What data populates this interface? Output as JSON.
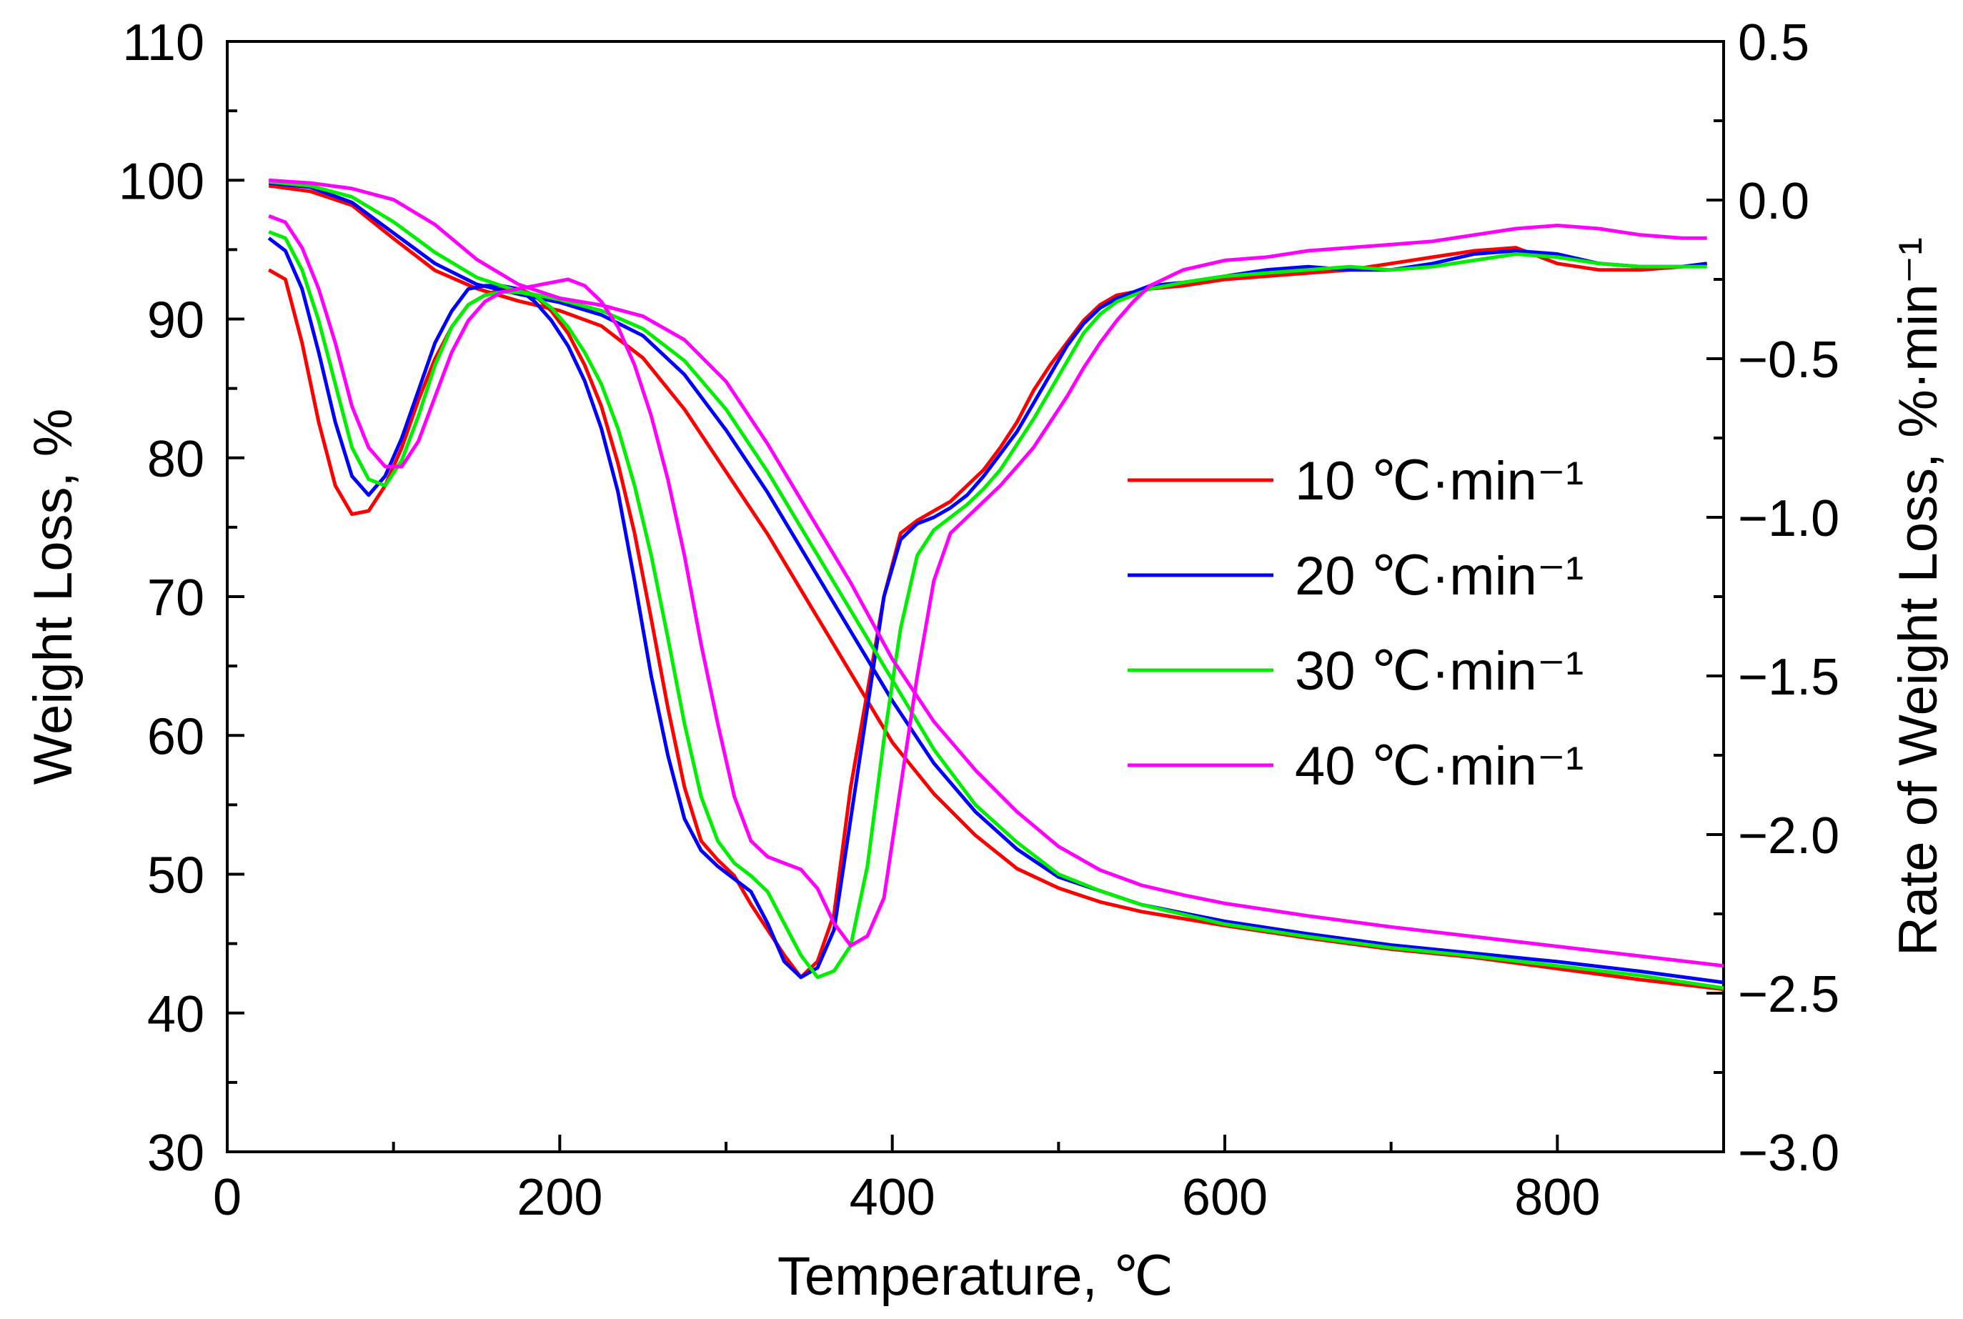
{
  "chart_data": {
    "type": "line",
    "xlabel": "Temperature, ℃",
    "ylabel_left": "Weight Loss, %",
    "ylabel_right": "Rate of Weight Loss, %·min⁻¹",
    "xlim": [
      0,
      900
    ],
    "ylim_left": [
      30,
      110
    ],
    "ylim_right": [
      -3.0,
      0.5
    ],
    "xticks": [
      0,
      200,
      400,
      600,
      800
    ],
    "xtick_labels": [
      "0",
      "200",
      "400",
      "600",
      "800"
    ],
    "yticks_left": [
      30,
      40,
      50,
      60,
      70,
      80,
      90,
      100,
      110
    ],
    "ytick_labels_left": [
      "30",
      "40",
      "50",
      "60",
      "70",
      "80",
      "90",
      "100",
      "110"
    ],
    "yticks_right": [
      -3.0,
      -2.5,
      -2.0,
      -1.5,
      -1.0,
      -0.5,
      0.0,
      0.5
    ],
    "ytick_labels_right": [
      "−3.0",
      "−2.5",
      "−2.0",
      "−1.5",
      "−1.0",
      "−0.5",
      "0.0",
      "0.5"
    ],
    "legend_position": "center-right",
    "series": [
      {
        "name": "10 ℃·min⁻¹",
        "color": "#ff0000",
        "tg_x": [
          25,
          50,
          75,
          100,
          125,
          150,
          175,
          200,
          225,
          250,
          275,
          300,
          325,
          350,
          375,
          400,
          425,
          450,
          475,
          500,
          525,
          550,
          575,
          600,
          650,
          700,
          750,
          800,
          850,
          900
        ],
        "tg_y": [
          99.6,
          99.2,
          98.2,
          95.8,
          93.5,
          92.2,
          91.3,
          90.6,
          89.5,
          87.2,
          83.5,
          79.0,
          74.5,
          69.5,
          64.5,
          59.5,
          55.8,
          52.8,
          50.4,
          49.0,
          48.0,
          47.3,
          46.8,
          46.3,
          45.4,
          44.6,
          44.0,
          43.2,
          42.4,
          41.7
        ],
        "dtg_x": [
          25,
          35,
          45,
          55,
          65,
          75,
          85,
          95,
          105,
          115,
          125,
          135,
          145,
          155,
          165,
          175,
          185,
          195,
          205,
          215,
          225,
          235,
          245,
          255,
          265,
          275,
          285,
          295,
          305,
          315,
          325,
          335,
          345,
          355,
          365,
          375,
          385,
          395,
          405,
          415,
          425,
          435,
          445,
          455,
          465,
          475,
          485,
          495,
          505,
          515,
          525,
          535,
          545,
          555,
          575,
          600,
          625,
          650,
          675,
          700,
          725,
          750,
          775,
          800,
          825,
          850,
          875,
          890
        ],
        "dtg_y": [
          -0.22,
          -0.25,
          -0.45,
          -0.7,
          -0.9,
          -0.99,
          -0.98,
          -0.9,
          -0.78,
          -0.63,
          -0.5,
          -0.4,
          -0.33,
          -0.3,
          -0.28,
          -0.28,
          -0.3,
          -0.35,
          -0.42,
          -0.52,
          -0.65,
          -0.83,
          -1.05,
          -1.32,
          -1.6,
          -1.85,
          -2.02,
          -2.08,
          -2.13,
          -2.22,
          -2.3,
          -2.38,
          -2.45,
          -2.4,
          -2.25,
          -1.85,
          -1.55,
          -1.25,
          -1.05,
          -1.01,
          -0.98,
          -0.95,
          -0.9,
          -0.85,
          -0.78,
          -0.7,
          -0.6,
          -0.52,
          -0.45,
          -0.38,
          -0.33,
          -0.3,
          -0.29,
          -0.28,
          -0.27,
          -0.25,
          -0.24,
          -0.23,
          -0.22,
          -0.2,
          -0.18,
          -0.16,
          -0.15,
          -0.2,
          -0.22,
          -0.22,
          -0.21,
          -0.2
        ]
      },
      {
        "name": "20 ℃·min⁻¹",
        "color": "#0000ff",
        "tg_x": [
          25,
          50,
          75,
          100,
          125,
          150,
          175,
          200,
          225,
          250,
          275,
          300,
          325,
          350,
          375,
          400,
          425,
          450,
          475,
          500,
          525,
          550,
          575,
          600,
          650,
          700,
          750,
          800,
          850,
          900
        ],
        "tg_y": [
          99.8,
          99.5,
          98.4,
          96.2,
          94.0,
          92.5,
          91.8,
          91.2,
          90.3,
          88.8,
          86.0,
          82.0,
          77.5,
          72.5,
          67.5,
          62.5,
          58.0,
          54.5,
          51.8,
          49.8,
          48.8,
          47.8,
          47.2,
          46.6,
          45.7,
          44.9,
          44.3,
          43.7,
          43.0,
          42.2
        ],
        "dtg_x": [
          25,
          35,
          45,
          55,
          65,
          75,
          85,
          95,
          105,
          115,
          125,
          135,
          145,
          155,
          165,
          175,
          185,
          195,
          205,
          215,
          225,
          235,
          245,
          255,
          265,
          275,
          285,
          295,
          305,
          315,
          325,
          335,
          345,
          355,
          365,
          375,
          385,
          395,
          405,
          415,
          425,
          435,
          445,
          455,
          465,
          475,
          485,
          495,
          505,
          515,
          525,
          535,
          545,
          555,
          575,
          600,
          625,
          650,
          675,
          700,
          725,
          750,
          775,
          800,
          825,
          850,
          875,
          890
        ],
        "dtg_y": [
          -0.12,
          -0.16,
          -0.28,
          -0.48,
          -0.7,
          -0.87,
          -0.93,
          -0.87,
          -0.75,
          -0.6,
          -0.45,
          -0.35,
          -0.28,
          -0.27,
          -0.27,
          -0.28,
          -0.32,
          -0.38,
          -0.46,
          -0.57,
          -0.72,
          -0.92,
          -1.2,
          -1.5,
          -1.75,
          -1.95,
          -2.05,
          -2.1,
          -2.14,
          -2.18,
          -2.28,
          -2.4,
          -2.45,
          -2.42,
          -2.3,
          -1.95,
          -1.6,
          -1.25,
          -1.07,
          -1.02,
          -1.0,
          -0.97,
          -0.93,
          -0.87,
          -0.8,
          -0.73,
          -0.64,
          -0.55,
          -0.46,
          -0.39,
          -0.34,
          -0.31,
          -0.29,
          -0.27,
          -0.26,
          -0.24,
          -0.22,
          -0.21,
          -0.22,
          -0.22,
          -0.2,
          -0.17,
          -0.16,
          -0.17,
          -0.2,
          -0.21,
          -0.21,
          -0.2
        ]
      },
      {
        "name": "30 ℃·min⁻¹",
        "color": "#00ee00",
        "tg_x": [
          25,
          50,
          75,
          100,
          125,
          150,
          175,
          200,
          225,
          250,
          275,
          300,
          325,
          350,
          375,
          400,
          425,
          450,
          475,
          500,
          525,
          550,
          575,
          600,
          650,
          700,
          750,
          800,
          850,
          900
        ],
        "tg_y": [
          99.9,
          99.6,
          98.8,
          97.0,
          94.8,
          93.0,
          92.0,
          91.4,
          90.6,
          89.3,
          87.0,
          83.5,
          79.0,
          74.0,
          69.0,
          64.0,
          59.0,
          55.0,
          52.3,
          50.0,
          48.8,
          47.8,
          47.1,
          46.4,
          45.5,
          44.7,
          44.1,
          43.4,
          42.7,
          41.8
        ],
        "dtg_x": [
          25,
          35,
          45,
          55,
          65,
          75,
          85,
          95,
          105,
          115,
          125,
          135,
          145,
          155,
          165,
          175,
          185,
          195,
          205,
          215,
          225,
          235,
          245,
          255,
          265,
          275,
          285,
          295,
          305,
          315,
          325,
          335,
          345,
          355,
          365,
          375,
          385,
          395,
          405,
          415,
          425,
          435,
          445,
          455,
          465,
          475,
          485,
          495,
          505,
          515,
          525,
          535,
          545,
          555,
          575,
          600,
          625,
          650,
          675,
          700,
          725,
          750,
          775,
          800,
          825,
          850,
          875,
          890
        ],
        "dtg_y": [
          -0.1,
          -0.12,
          -0.22,
          -0.38,
          -0.58,
          -0.78,
          -0.88,
          -0.9,
          -0.82,
          -0.68,
          -0.52,
          -0.4,
          -0.33,
          -0.3,
          -0.29,
          -0.29,
          -0.3,
          -0.34,
          -0.4,
          -0.48,
          -0.58,
          -0.72,
          -0.9,
          -1.12,
          -1.38,
          -1.65,
          -1.88,
          -2.02,
          -2.09,
          -2.13,
          -2.18,
          -2.28,
          -2.38,
          -2.45,
          -2.43,
          -2.35,
          -2.1,
          -1.7,
          -1.35,
          -1.12,
          -1.04,
          -1.0,
          -0.96,
          -0.91,
          -0.85,
          -0.77,
          -0.69,
          -0.6,
          -0.51,
          -0.42,
          -0.36,
          -0.32,
          -0.3,
          -0.28,
          -0.26,
          -0.24,
          -0.23,
          -0.22,
          -0.21,
          -0.22,
          -0.21,
          -0.19,
          -0.17,
          -0.18,
          -0.2,
          -0.21,
          -0.21,
          -0.21
        ]
      },
      {
        "name": "40 ℃·min⁻¹",
        "color": "#ff00ff",
        "tg_x": [
          25,
          50,
          75,
          100,
          125,
          150,
          175,
          200,
          225,
          250,
          275,
          300,
          325,
          350,
          375,
          400,
          425,
          450,
          475,
          500,
          525,
          550,
          575,
          600,
          650,
          700,
          750,
          800,
          850,
          900
        ],
        "tg_y": [
          100.0,
          99.8,
          99.4,
          98.6,
          96.8,
          94.3,
          92.5,
          91.5,
          91.0,
          90.2,
          88.5,
          85.5,
          81.0,
          76.0,
          71.0,
          65.5,
          61.0,
          57.5,
          54.5,
          52.0,
          50.3,
          49.2,
          48.5,
          47.9,
          47.0,
          46.2,
          45.5,
          44.8,
          44.1,
          43.4
        ],
        "dtg_x": [
          25,
          35,
          45,
          55,
          65,
          75,
          85,
          95,
          105,
          115,
          125,
          135,
          145,
          155,
          165,
          175,
          185,
          195,
          205,
          215,
          225,
          235,
          245,
          255,
          265,
          275,
          285,
          295,
          305,
          315,
          325,
          335,
          345,
          355,
          365,
          375,
          385,
          395,
          405,
          415,
          425,
          435,
          445,
          455,
          465,
          475,
          485,
          495,
          505,
          515,
          525,
          535,
          545,
          555,
          575,
          600,
          625,
          650,
          675,
          700,
          725,
          750,
          775,
          800,
          825,
          850,
          875,
          890
        ],
        "dtg_y": [
          -0.05,
          -0.07,
          -0.15,
          -0.28,
          -0.45,
          -0.65,
          -0.78,
          -0.84,
          -0.84,
          -0.76,
          -0.62,
          -0.48,
          -0.38,
          -0.32,
          -0.29,
          -0.28,
          -0.27,
          -0.26,
          -0.25,
          -0.27,
          -0.32,
          -0.4,
          -0.52,
          -0.68,
          -0.88,
          -1.12,
          -1.4,
          -1.65,
          -1.88,
          -2.02,
          -2.07,
          -2.09,
          -2.11,
          -2.17,
          -2.28,
          -2.35,
          -2.32,
          -2.2,
          -1.85,
          -1.5,
          -1.2,
          -1.05,
          -1.0,
          -0.95,
          -0.9,
          -0.84,
          -0.78,
          -0.7,
          -0.62,
          -0.53,
          -0.45,
          -0.38,
          -0.32,
          -0.27,
          -0.22,
          -0.19,
          -0.18,
          -0.16,
          -0.15,
          -0.14,
          -0.13,
          -0.11,
          -0.09,
          -0.08,
          -0.09,
          -0.11,
          -0.12,
          -0.12
        ]
      }
    ]
  }
}
